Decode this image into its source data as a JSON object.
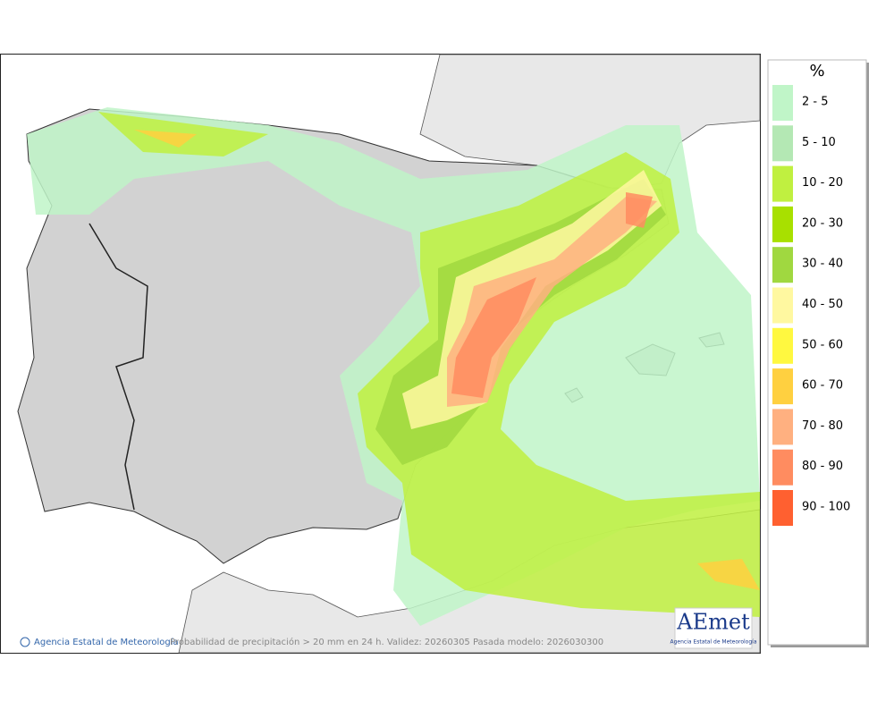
{
  "legend": {
    "title": "%",
    "items": [
      {
        "label": "2 - 5",
        "color": "#c0f5c8"
      },
      {
        "label": "5 - 10",
        "color": "#b4e8b4"
      },
      {
        "label": "10 - 20",
        "color": "#c0f040"
      },
      {
        "label": "20 - 30",
        "color": "#a8e000"
      },
      {
        "label": "30 - 40",
        "color": "#a0d840"
      },
      {
        "label": "40 - 50",
        "color": "#fff8a0"
      },
      {
        "label": "50 - 60",
        "color": "#fff840"
      },
      {
        "label": "60 - 70",
        "color": "#ffd040"
      },
      {
        "label": "70 - 80",
        "color": "#ffb080"
      },
      {
        "label": "80 - 90",
        "color": "#ff8c60"
      },
      {
        "label": "90 - 100",
        "color": "#ff6030"
      }
    ]
  },
  "footer": {
    "credit": "Agencia Estatal de Meteorología",
    "caption": "Probabilidad de precipitación > 20 mm en 24 h. Validez: 20260305 Pasada modelo: 2026030300"
  },
  "logo": {
    "name": "AEmet",
    "subtitle": "Agencia Estatal de Meteorología"
  }
}
